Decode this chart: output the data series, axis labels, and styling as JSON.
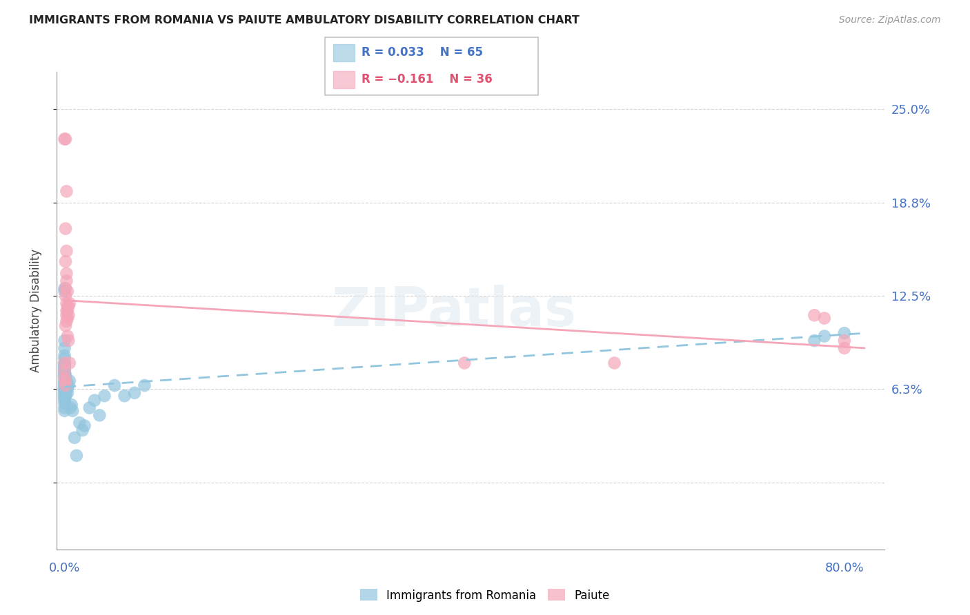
{
  "title": "IMMIGRANTS FROM ROMANIA VS PAIUTE AMBULATORY DISABILITY CORRELATION CHART",
  "source": "Source: ZipAtlas.com",
  "ylabel": "Ambulatory Disability",
  "romania_color": "#92c5de",
  "paiute_color": "#f4a6b8",
  "ytick_vals": [
    0.0,
    0.0625,
    0.125,
    0.1875,
    0.25
  ],
  "ytick_labels": [
    "",
    "6.3%",
    "12.5%",
    "18.8%",
    "25.0%"
  ],
  "xlim": [
    -0.008,
    0.82
  ],
  "ylim": [
    -0.045,
    0.275
  ],
  "watermark": "ZIPatlas",
  "romania_points": [
    [
      0.0,
      0.13
    ],
    [
      0.0,
      0.128
    ],
    [
      0.0,
      0.095
    ],
    [
      0.0,
      0.09
    ],
    [
      0.0,
      0.085
    ],
    [
      0.0,
      0.083
    ],
    [
      0.0,
      0.08
    ],
    [
      0.0,
      0.079
    ],
    [
      0.0,
      0.078
    ],
    [
      0.0,
      0.077
    ],
    [
      0.0,
      0.076
    ],
    [
      0.0,
      0.075
    ],
    [
      0.0,
      0.074
    ],
    [
      0.0,
      0.073
    ],
    [
      0.0,
      0.072
    ],
    [
      0.0,
      0.071
    ],
    [
      0.0,
      0.07
    ],
    [
      0.0,
      0.068
    ],
    [
      0.0,
      0.067
    ],
    [
      0.0,
      0.066
    ],
    [
      0.0,
      0.065
    ],
    [
      0.0,
      0.064
    ],
    [
      0.0,
      0.063
    ],
    [
      0.0,
      0.062
    ],
    [
      0.0,
      0.061
    ],
    [
      0.0,
      0.06
    ],
    [
      0.0,
      0.059
    ],
    [
      0.0,
      0.058
    ],
    [
      0.0,
      0.057
    ],
    [
      0.0,
      0.056
    ],
    [
      0.0,
      0.055
    ],
    [
      0.0,
      0.053
    ],
    [
      0.0,
      0.05
    ],
    [
      0.0,
      0.048
    ],
    [
      0.001,
      0.072
    ],
    [
      0.001,
      0.068
    ],
    [
      0.001,
      0.065
    ],
    [
      0.001,
      0.063
    ],
    [
      0.001,
      0.06
    ],
    [
      0.001,
      0.058
    ],
    [
      0.002,
      0.068
    ],
    [
      0.002,
      0.065
    ],
    [
      0.003,
      0.063
    ],
    [
      0.003,
      0.06
    ],
    [
      0.004,
      0.065
    ],
    [
      0.005,
      0.068
    ],
    [
      0.006,
      0.05
    ],
    [
      0.007,
      0.052
    ],
    [
      0.008,
      0.048
    ],
    [
      0.01,
      0.03
    ],
    [
      0.012,
      0.018
    ],
    [
      0.015,
      0.04
    ],
    [
      0.018,
      0.035
    ],
    [
      0.02,
      0.038
    ],
    [
      0.025,
      0.05
    ],
    [
      0.03,
      0.055
    ],
    [
      0.035,
      0.045
    ],
    [
      0.04,
      0.058
    ],
    [
      0.05,
      0.065
    ],
    [
      0.06,
      0.058
    ],
    [
      0.07,
      0.06
    ],
    [
      0.08,
      0.065
    ],
    [
      0.75,
      0.095
    ],
    [
      0.78,
      0.1
    ],
    [
      0.76,
      0.098
    ]
  ],
  "paiute_points": [
    [
      0.0,
      0.23
    ],
    [
      0.001,
      0.23
    ],
    [
      0.002,
      0.195
    ],
    [
      0.001,
      0.17
    ],
    [
      0.002,
      0.155
    ],
    [
      0.001,
      0.148
    ],
    [
      0.002,
      0.14
    ],
    [
      0.002,
      0.135
    ],
    [
      0.001,
      0.13
    ],
    [
      0.003,
      0.128
    ],
    [
      0.001,
      0.125
    ],
    [
      0.002,
      0.12
    ],
    [
      0.003,
      0.118
    ],
    [
      0.002,
      0.115
    ],
    [
      0.003,
      0.115
    ],
    [
      0.002,
      0.112
    ],
    [
      0.003,
      0.11
    ],
    [
      0.002,
      0.108
    ],
    [
      0.001,
      0.105
    ],
    [
      0.004,
      0.118
    ],
    [
      0.004,
      0.112
    ],
    [
      0.003,
      0.098
    ],
    [
      0.004,
      0.095
    ],
    [
      0.005,
      0.12
    ],
    [
      0.005,
      0.08
    ],
    [
      0.0,
      0.08
    ],
    [
      0.0,
      0.075
    ],
    [
      0.0,
      0.07
    ],
    [
      0.001,
      0.068
    ],
    [
      0.001,
      0.065
    ],
    [
      0.4,
      0.08
    ],
    [
      0.55,
      0.08
    ],
    [
      0.75,
      0.112
    ],
    [
      0.76,
      0.11
    ],
    [
      0.78,
      0.095
    ],
    [
      0.78,
      0.09
    ]
  ],
  "romania_trend_x": [
    0.0,
    0.8
  ],
  "romania_trend_y": [
    0.064,
    0.1
  ],
  "paiute_trend_x": [
    0.0,
    0.8
  ],
  "paiute_trend_y": [
    0.122,
    0.09
  ]
}
